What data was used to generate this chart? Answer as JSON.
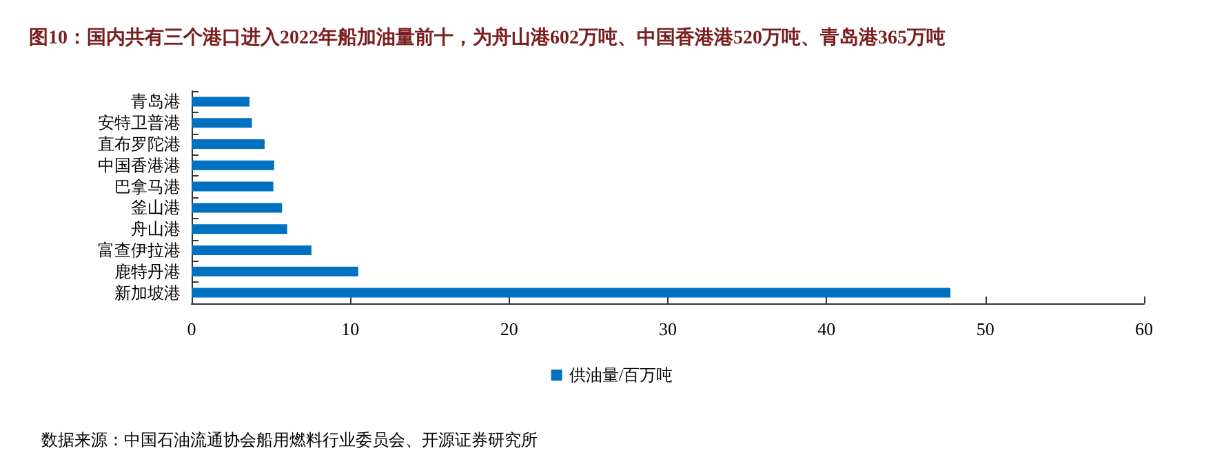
{
  "chart_data": {
    "type": "bar",
    "orientation": "horizontal",
    "title": "图10：国内共有三个港口进入2022年船加油量前十，为舟山港602万吨、中国香港港520万吨、青岛港365万吨",
    "categories": [
      "青岛港",
      "安特卫普港",
      "直布罗陀港",
      "中国香港港",
      "巴拿马港",
      "釜山港",
      "舟山港",
      "富查伊拉港",
      "鹿特丹港",
      "新加坡港"
    ],
    "series": [
      {
        "name": "供油量/百万吨",
        "color": "#0070c0",
        "values": [
          3.65,
          3.8,
          4.6,
          5.2,
          5.15,
          5.7,
          6.02,
          7.55,
          10.5,
          47.8
        ]
      }
    ],
    "xlim": [
      0,
      60
    ],
    "xticks": [
      0,
      10,
      20,
      30,
      40,
      50,
      60
    ],
    "grid": false,
    "legend": "bottom",
    "annotations": [
      "数据来源：中国石油流通协会船用燃料行业委员会、开源证券研究所"
    ]
  }
}
